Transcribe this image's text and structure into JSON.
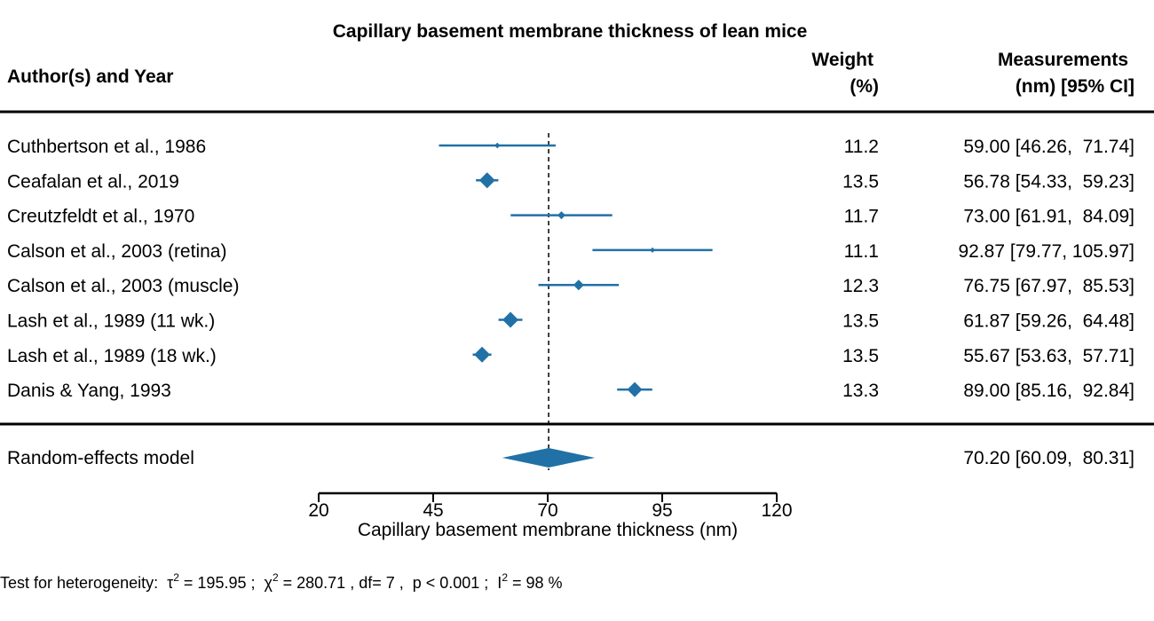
{
  "chart_data": {
    "type": "forest",
    "title": "Capillary basement membrane thickness of lean mice",
    "columns": {
      "study": "Author(s) and Year",
      "weight_line1": "Weight",
      "weight_line2": "(%)",
      "measure_line1": "Measurements",
      "measure_line2": "(nm) [95% CI]"
    },
    "studies": [
      {
        "label": "Cuthbertson et al., 1986",
        "estimate": 59.0,
        "lower": 46.26,
        "upper": 71.74,
        "weight": 11.2,
        "weight_text": "11.2",
        "ci_text": "59.00 [46.26,  71.74]"
      },
      {
        "label": "Ceafalan et al., 2019",
        "estimate": 56.78,
        "lower": 54.33,
        "upper": 59.23,
        "weight": 13.5,
        "weight_text": "13.5",
        "ci_text": "56.78 [54.33,  59.23]"
      },
      {
        "label": "Creutzfeldt et al., 1970",
        "estimate": 73.0,
        "lower": 61.91,
        "upper": 84.09,
        "weight": 11.7,
        "weight_text": "11.7",
        "ci_text": "73.00 [61.91,  84.09]"
      },
      {
        "label": "Calson et al., 2003 (retina)",
        "estimate": 92.87,
        "lower": 79.77,
        "upper": 105.97,
        "weight": 11.1,
        "weight_text": "11.1",
        "ci_text": "92.87 [79.77, 105.97]"
      },
      {
        "label": "Calson et al., 2003 (muscle)",
        "estimate": 76.75,
        "lower": 67.97,
        "upper": 85.53,
        "weight": 12.3,
        "weight_text": "12.3",
        "ci_text": "76.75 [67.97,  85.53]"
      },
      {
        "label": "Lash et al., 1989 (11 wk.)",
        "estimate": 61.87,
        "lower": 59.26,
        "upper": 64.48,
        "weight": 13.5,
        "weight_text": "13.5",
        "ci_text": "61.87 [59.26,  64.48]"
      },
      {
        "label": "Lash et al., 1989 (18 wk.)",
        "estimate": 55.67,
        "lower": 53.63,
        "upper": 57.71,
        "weight": 13.5,
        "weight_text": "13.5",
        "ci_text": "55.67 [53.63,  57.71]"
      },
      {
        "label": "Danis & Yang, 1993",
        "estimate": 89.0,
        "lower": 85.16,
        "upper": 92.84,
        "weight": 13.3,
        "weight_text": "13.3",
        "ci_text": "89.00 [85.16,  92.84]"
      }
    ],
    "summary": {
      "label": "Random-effects model",
      "estimate": 70.2,
      "lower": 60.09,
      "upper": 80.31,
      "ci_text": "70.20 [60.09,  80.31]"
    },
    "reference_line": 70.2,
    "xlabel": "Capillary basement membrane thickness (nm)",
    "xlim": [
      20,
      120
    ],
    "xticks": [
      20,
      45,
      70,
      95,
      120
    ],
    "heterogeneity": {
      "prefix": "Test for heterogeneity:  τ",
      "tau_value": " = 195.95 ;  χ",
      "chi_value": " = 280.71 , df= 7 ,  p < 0.001 ;  I",
      "i2_value": " = 98 %",
      "superscript": "2"
    },
    "colors": {
      "marker": "#2171a6",
      "text": "#000000"
    }
  }
}
